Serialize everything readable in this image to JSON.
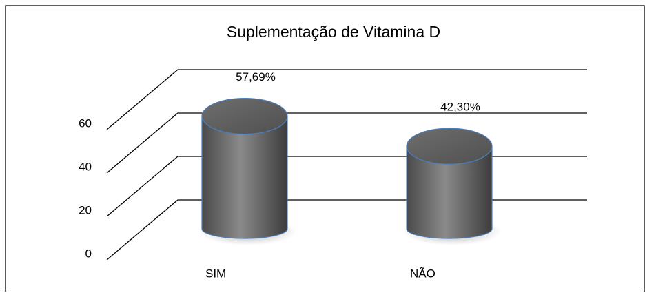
{
  "chart_data": {
    "type": "cylinder",
    "title": "Suplementação de Vitamina D",
    "categories": [
      "SIM",
      "NÃO"
    ],
    "values": [
      57.69,
      42.3
    ],
    "value_labels": [
      "57,69%",
      "42,30%"
    ],
    "ylim": [
      0,
      60
    ],
    "yticks": [
      0,
      20,
      40,
      60
    ],
    "grid": true
  }
}
